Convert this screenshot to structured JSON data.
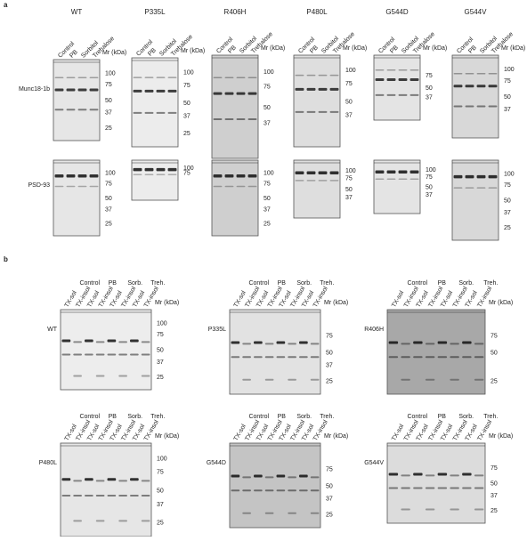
{
  "panel_a": {
    "label": "a",
    "mr_label": "Mr (kDa)",
    "lane_labels": [
      "Control",
      "PB",
      "Sorbitol",
      "Trehalose"
    ],
    "row_labels": [
      "Munc18-1b",
      "PSD-93"
    ],
    "columns": [
      {
        "title": "WT",
        "munc_markers": [
          100,
          75,
          50,
          37,
          25
        ],
        "psd_markers": [
          100,
          75,
          50,
          37,
          25
        ]
      },
      {
        "title": "P335L",
        "munc_markers": [
          100,
          75,
          50,
          37,
          25
        ],
        "psd_markers": [
          100,
          75
        ]
      },
      {
        "title": "R406H",
        "munc_markers": [
          100,
          75,
          50,
          37
        ],
        "psd_markers": [
          100,
          75,
          50,
          37,
          25
        ]
      },
      {
        "title": "P480L",
        "munc_markers": [
          100,
          75,
          50,
          37
        ],
        "psd_markers": [
          100,
          75,
          50,
          37
        ]
      },
      {
        "title": "G544D",
        "munc_markers": [
          75,
          50,
          37
        ],
        "psd_markers": [
          100,
          75,
          50,
          37
        ]
      },
      {
        "title": "G544V",
        "munc_markers": [
          100,
          75,
          50,
          37
        ],
        "psd_markers": [
          100,
          75,
          50,
          37,
          25
        ]
      }
    ]
  },
  "panel_b": {
    "label": "b",
    "mr_label": "Mr (kDa)",
    "group_labels": [
      "Control",
      "PB",
      "Sorb.",
      "Treh."
    ],
    "lane_labels": [
      "TX-sol",
      "TX-insol"
    ],
    "blots": [
      {
        "label": "WT",
        "markers": [
          100,
          75,
          50,
          37,
          25
        ]
      },
      {
        "label": "P335L",
        "markers": [
          75,
          50,
          37,
          25
        ]
      },
      {
        "label": "R406H",
        "markers": [
          75,
          50,
          25
        ]
      },
      {
        "label": "P480L",
        "markers": [
          100,
          75,
          50,
          37,
          25
        ]
      },
      {
        "label": "G544D",
        "markers": [
          75,
          50,
          37,
          25
        ]
      },
      {
        "label": "G544V",
        "markers": [
          75,
          50,
          37,
          25
        ]
      }
    ]
  }
}
